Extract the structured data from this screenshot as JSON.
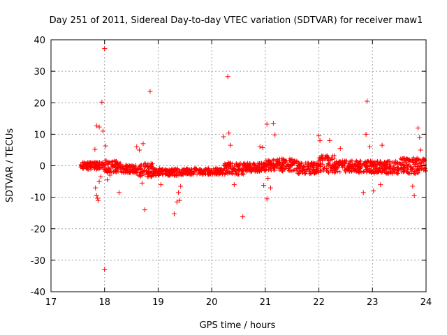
{
  "chart_data": {
    "type": "scatter",
    "title": "Day 251 of 2011, Sidereal Day-to-day VTEC variation (SDTVAR) for receiver maw1",
    "xlabel": "GPS time / hours",
    "ylabel": "SDTVAR / TECUs",
    "xlim": [
      17,
      24
    ],
    "ylim": [
      -40,
      40
    ],
    "x_ticks": [
      17,
      18,
      19,
      20,
      21,
      22,
      23,
      24
    ],
    "y_ticks": [
      -40,
      -30,
      -20,
      -10,
      0,
      10,
      20,
      30,
      40
    ],
    "x_tick_labels": [
      "17",
      "18",
      "19",
      "20",
      "21",
      "22",
      "23",
      "24"
    ],
    "y_tick_labels": [
      "-40",
      "-30",
      "-20",
      "-10",
      "0",
      "10",
      "20",
      "30",
      "40"
    ],
    "grid": true,
    "marker": "+",
    "marker_color": "#ff0000",
    "band_segments": [
      {
        "x0": 17.55,
        "x1": 18.0,
        "center": 0.0,
        "spread": 1.2
      },
      {
        "x0": 18.0,
        "x1": 18.3,
        "center": -0.3,
        "spread": 2.0
      },
      {
        "x0": 18.3,
        "x1": 18.6,
        "center": -1.0,
        "spread": 1.3
      },
      {
        "x0": 18.6,
        "x1": 18.9,
        "center": -1.4,
        "spread": 2.2
      },
      {
        "x0": 18.9,
        "x1": 19.5,
        "center": -2.0,
        "spread": 1.2
      },
      {
        "x0": 19.5,
        "x1": 20.2,
        "center": -1.8,
        "spread": 1.0
      },
      {
        "x0": 20.2,
        "x1": 20.6,
        "center": -0.8,
        "spread": 2.0
      },
      {
        "x0": 20.6,
        "x1": 21.0,
        "center": -0.5,
        "spread": 1.4
      },
      {
        "x0": 21.0,
        "x1": 21.6,
        "center": 0.2,
        "spread": 2.0
      },
      {
        "x0": 21.6,
        "x1": 22.0,
        "center": -0.8,
        "spread": 1.8
      },
      {
        "x0": 22.0,
        "x1": 22.3,
        "center": 0.5,
        "spread": 2.8
      },
      {
        "x0": 22.3,
        "x1": 23.0,
        "center": -0.3,
        "spread": 2.0
      },
      {
        "x0": 23.0,
        "x1": 23.5,
        "center": -0.5,
        "spread": 2.0
      },
      {
        "x0": 23.5,
        "x1": 24.0,
        "center": 0.0,
        "spread": 2.6
      }
    ],
    "outliers": [
      {
        "x": 18.0,
        "y": 37.2
      },
      {
        "x": 17.95,
        "y": 20.2
      },
      {
        "x": 18.0,
        "y": -33.0
      },
      {
        "x": 17.85,
        "y": 12.7
      },
      {
        "x": 17.9,
        "y": 12.3
      },
      {
        "x": 17.97,
        "y": 11.0
      },
      {
        "x": 17.82,
        "y": 5.2
      },
      {
        "x": 18.02,
        "y": 6.3
      },
      {
        "x": 17.85,
        "y": -9.5
      },
      {
        "x": 17.87,
        "y": -10.3
      },
      {
        "x": 17.88,
        "y": -11.0
      },
      {
        "x": 17.83,
        "y": -7.0
      },
      {
        "x": 17.9,
        "y": -5.0
      },
      {
        "x": 17.93,
        "y": -3.5
      },
      {
        "x": 18.05,
        "y": -4.5
      },
      {
        "x": 18.1,
        "y": -3.0
      },
      {
        "x": 18.27,
        "y": -8.5
      },
      {
        "x": 18.85,
        "y": 23.6
      },
      {
        "x": 18.72,
        "y": 7.0
      },
      {
        "x": 18.6,
        "y": 6.0
      },
      {
        "x": 18.65,
        "y": 5.0
      },
      {
        "x": 18.75,
        "y": -14.0
      },
      {
        "x": 18.7,
        "y": -5.5
      },
      {
        "x": 18.8,
        "y": -3.5
      },
      {
        "x": 19.05,
        "y": -6.0
      },
      {
        "x": 19.3,
        "y": -15.3
      },
      {
        "x": 19.35,
        "y": -11.5
      },
      {
        "x": 19.4,
        "y": -11.0
      },
      {
        "x": 19.38,
        "y": -8.5
      },
      {
        "x": 19.42,
        "y": -6.5
      },
      {
        "x": 20.3,
        "y": 28.3
      },
      {
        "x": 20.32,
        "y": 10.4
      },
      {
        "x": 20.22,
        "y": 9.2
      },
      {
        "x": 20.35,
        "y": 6.5
      },
      {
        "x": 20.58,
        "y": -16.2
      },
      {
        "x": 20.42,
        "y": -6.0
      },
      {
        "x": 20.9,
        "y": 6.0
      },
      {
        "x": 20.95,
        "y": 5.8
      },
      {
        "x": 21.03,
        "y": 13.2
      },
      {
        "x": 21.15,
        "y": 13.5
      },
      {
        "x": 21.18,
        "y": 9.8
      },
      {
        "x": 21.03,
        "y": -10.5
      },
      {
        "x": 20.97,
        "y": -6.2
      },
      {
        "x": 21.1,
        "y": -7.0
      },
      {
        "x": 21.05,
        "y": -4.0
      },
      {
        "x": 22.0,
        "y": 9.5
      },
      {
        "x": 22.02,
        "y": 8.0
      },
      {
        "x": 22.2,
        "y": 8.0
      },
      {
        "x": 22.4,
        "y": 5.5
      },
      {
        "x": 22.9,
        "y": 20.5
      },
      {
        "x": 22.88,
        "y": 10.0
      },
      {
        "x": 22.95,
        "y": 6.0
      },
      {
        "x": 22.83,
        "y": -8.5
      },
      {
        "x": 23.02,
        "y": -8.0
      },
      {
        "x": 23.18,
        "y": 6.5
      },
      {
        "x": 23.15,
        "y": -6.0
      },
      {
        "x": 23.85,
        "y": 12.0
      },
      {
        "x": 23.88,
        "y": 9.0
      },
      {
        "x": 23.9,
        "y": 5.0
      },
      {
        "x": 23.75,
        "y": -6.5
      },
      {
        "x": 23.78,
        "y": -9.5
      }
    ]
  }
}
